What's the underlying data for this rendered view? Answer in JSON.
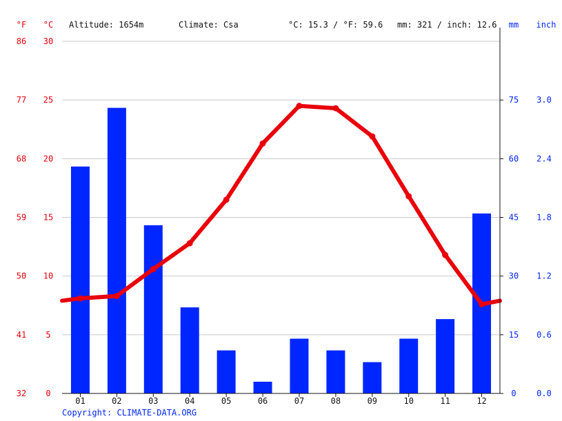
{
  "header": {
    "unit_f": "°F",
    "unit_c": "°C",
    "altitude": "Altitude: 1654m",
    "climate": "Climate: Csa",
    "temp_avg": "°C: 15.3 / °F: 59.6",
    "precip_total": "mm: 321 / inch: 12.6",
    "unit_mm": "mm",
    "unit_inch": "inch"
  },
  "footer": {
    "copyright": "Copyright: CLIMATE-DATA.ORG"
  },
  "colors": {
    "temperature": "#e8000b",
    "precipitation": "#0026ff",
    "grid": "#c8c8c8",
    "axis": "#111111"
  },
  "chart_data": {
    "type": "bar",
    "categories": [
      "01",
      "02",
      "03",
      "04",
      "05",
      "06",
      "07",
      "08",
      "09",
      "10",
      "11",
      "12"
    ],
    "series": [
      {
        "type": "bar",
        "axis": "right",
        "unit": "mm",
        "values": [
          58,
          73,
          43,
          22,
          11,
          3,
          14,
          11,
          8,
          14,
          19,
          46
        ]
      },
      {
        "type": "line",
        "axis": "left",
        "unit": "°C",
        "values": [
          8.1,
          8.3,
          10.6,
          12.8,
          16.5,
          21.3,
          24.5,
          24.3,
          21.9,
          16.8,
          11.8,
          7.6
        ],
        "edge_values": [
          7.9,
          7.9
        ]
      }
    ],
    "left_axis_c": {
      "ticks": [
        0,
        5,
        10,
        15,
        20,
        25,
        30
      ],
      "ylim": [
        0,
        30
      ]
    },
    "left_axis_f": {
      "ticks": [
        32,
        41,
        50,
        59,
        68,
        77,
        86
      ]
    },
    "right_axis_mm": {
      "ticks": [
        0,
        15,
        30,
        45,
        60,
        75
      ],
      "ylim": [
        0,
        90
      ]
    },
    "right_axis_inch": {
      "ticks": [
        "0.0",
        "0.6",
        "1.2",
        "1.8",
        "2.4",
        "3.0"
      ]
    },
    "grid": true
  }
}
